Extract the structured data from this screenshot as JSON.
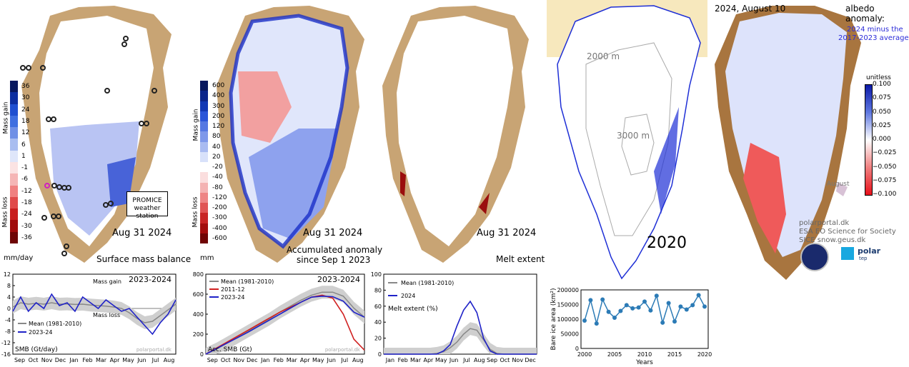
{
  "panels": {
    "smb": {
      "date": "Aug 31 2024",
      "title": "Surface mass balance",
      "unit": "mm/day",
      "gain_label": "Mass gain",
      "loss_label": "Mass loss",
      "scale": [
        "36",
        "30",
        "24",
        "18",
        "12",
        "6",
        "1",
        "-1",
        "-6",
        "-12",
        "-18",
        "-24",
        "-30",
        "-36"
      ],
      "scale_colors": [
        "#08185e",
        "#0d2ea0",
        "#1f4fd0",
        "#3f6fe0",
        "#7090e6",
        "#a9bdf0",
        "#dfe6fa",
        "#fbe3e3",
        "#f5b5b5",
        "#f08080",
        "#e04a4a",
        "#c81e1e",
        "#a00c0c",
        "#6e0606"
      ],
      "station_label_1": "PROMICE",
      "station_label_2": "weather station"
    },
    "acc": {
      "date": "Aug 31 2024",
      "title_1": "Accumulated anomaly",
      "title_2": "since Sep 1 2023",
      "unit": "mm",
      "scale": [
        "600",
        "400",
        "300",
        "200",
        "120",
        "80",
        "40",
        "20",
        "-20",
        "-40",
        "-80",
        "-120",
        "-200",
        "-300",
        "-400",
        "-600"
      ],
      "scale_colors": [
        "#08185e",
        "#0b258a",
        "#1238b4",
        "#2a55d8",
        "#5578e2",
        "#7e98ea",
        "#a9bbf1",
        "#d8e1fa",
        "#ffffff",
        "#fbdede",
        "#f4b3b3",
        "#ee8585",
        "#e05555",
        "#c82525",
        "#a30e0e",
        "#700505"
      ]
    },
    "melt": {
      "date": "Aug 31 2024",
      "title": "Melt extent"
    },
    "bare": {
      "contour_1": "2000 m",
      "contour_2": "3000 m",
      "year": "2020"
    },
    "albedo": {
      "date": "2024, August 10",
      "title_1": "albedo",
      "title_2": "anomaly:",
      "subtitle_1": "2024 minus the",
      "subtitle_2": "2017-2023 average",
      "unit": "unitless",
      "inset_label": "August",
      "credit_1": "polarportal.dk",
      "credit_2": "ESA EO Science for Society",
      "credit_3": "SICE  snow.geus.dk",
      "logo_1": "polar",
      "logo_2": "tep"
    }
  },
  "chart_data": [
    {
      "type": "line",
      "title": "2023-2024",
      "ylabel": "SMB (Gt/day)",
      "annotations": [
        "Mass gain",
        "Mass loss",
        "polarportal.dk"
      ],
      "ylim": [
        -16,
        12
      ],
      "yticks": [
        "12",
        "8",
        "4",
        "0",
        "-4",
        "-8",
        "-12",
        "-16"
      ],
      "xticks": [
        "Sep",
        "Oct",
        "Nov",
        "Dec",
        "Jan",
        "Feb",
        "Mar",
        "Apr",
        "May",
        "Jun",
        "Jul",
        "Aug"
      ],
      "legend": "bottom-left",
      "series": [
        {
          "name": "Mean (1981-2010)",
          "color": "#888888",
          "values": [
            0.5,
            2,
            1.5,
            1.8,
            1.5,
            2,
            1.5,
            1.6,
            1.4,
            1.5,
            1.2,
            1,
            0.8,
            0.5,
            0,
            -1.5,
            -3.5,
            -5,
            -4.5,
            -2.5,
            -0.5,
            1.5
          ]
        },
        {
          "name": "2023-24",
          "color": "#1f22c8",
          "values": [
            -1,
            4,
            -1,
            2,
            0,
            5,
            1,
            2,
            -1,
            4,
            2,
            0,
            3,
            1,
            -1,
            0,
            -3,
            -6,
            -9,
            -5,
            -2,
            3
          ]
        }
      ]
    },
    {
      "type": "line",
      "title": "2023-2024",
      "ylabel": "Acc. SMB (Gt)",
      "annotations": [
        "polarportal.dk"
      ],
      "ylim": [
        0,
        800
      ],
      "yticks": [
        "800",
        "600",
        "400",
        "200",
        "0"
      ],
      "xticks": [
        "Sep",
        "Oct",
        "Nov",
        "Dec",
        "Jan",
        "Feb",
        "Mar",
        "Apr",
        "May",
        "Jun",
        "Jul",
        "Aug"
      ],
      "legend": "top-left",
      "series": [
        {
          "name": "Mean (1981-2010)",
          "color": "#888888",
          "values": [
            0,
            50,
            110,
            170,
            230,
            290,
            350,
            420,
            480,
            540,
            590,
            620,
            620,
            580,
            460,
            370
          ]
        },
        {
          "name": "2011-12",
          "color": "#d02020",
          "values": [
            0,
            60,
            120,
            180,
            240,
            300,
            360,
            420,
            470,
            520,
            570,
            590,
            560,
            400,
            150,
            40
          ]
        },
        {
          "name": "2023-24",
          "color": "#1f22c8",
          "values": [
            0,
            55,
            110,
            165,
            220,
            280,
            340,
            400,
            460,
            520,
            570,
            580,
            575,
            530,
            420,
            370
          ]
        }
      ]
    },
    {
      "type": "line",
      "ylabel": "Melt extent (%)",
      "ylim": [
        0,
        100
      ],
      "yticks": [
        "100",
        "80",
        "60",
        "40",
        "20",
        "0"
      ],
      "xticks": [
        "Jan",
        "Feb",
        "Mar",
        "Apr",
        "May",
        "Jun",
        "Jul",
        "Aug",
        "Sep",
        "Oct",
        "Nov",
        "Dec"
      ],
      "legend": "top-left",
      "series": [
        {
          "name": "Mean (1981-2010)",
          "color": "#888888",
          "values": [
            0,
            0,
            0,
            0,
            0,
            0,
            0,
            0,
            1,
            3,
            8,
            15,
            25,
            32,
            30,
            18,
            6,
            1,
            0,
            0,
            0,
            0,
            0,
            0
          ]
        },
        {
          "name": "2024",
          "color": "#1f22c8",
          "values": [
            0,
            0,
            0,
            0,
            0,
            0,
            0,
            0,
            0,
            4,
            12,
            35,
            55,
            66,
            52,
            20,
            4,
            0,
            0,
            0,
            0,
            0,
            0,
            0
          ]
        }
      ]
    },
    {
      "type": "line",
      "xlabel": "Years",
      "ylabel": "Bare ice area (km²)",
      "ylim": [
        0,
        200000
      ],
      "yticks": [
        "200000",
        "150000",
        "100000",
        "50000",
        "0"
      ],
      "xticks": [
        "2000",
        "2005",
        "2010",
        "2015",
        "2020"
      ],
      "color": "#2c7bb6",
      "x": [
        2000,
        2001,
        2002,
        2003,
        2004,
        2005,
        2006,
        2007,
        2008,
        2009,
        2010,
        2011,
        2012,
        2013,
        2014,
        2015,
        2016,
        2017,
        2018,
        2019,
        2020
      ],
      "values": [
        95000,
        165000,
        85000,
        167000,
        125000,
        105000,
        128000,
        148000,
        137000,
        140000,
        160000,
        130000,
        180000,
        88000,
        155000,
        92000,
        143000,
        133000,
        148000,
        182000,
        143000
      ]
    }
  ]
}
